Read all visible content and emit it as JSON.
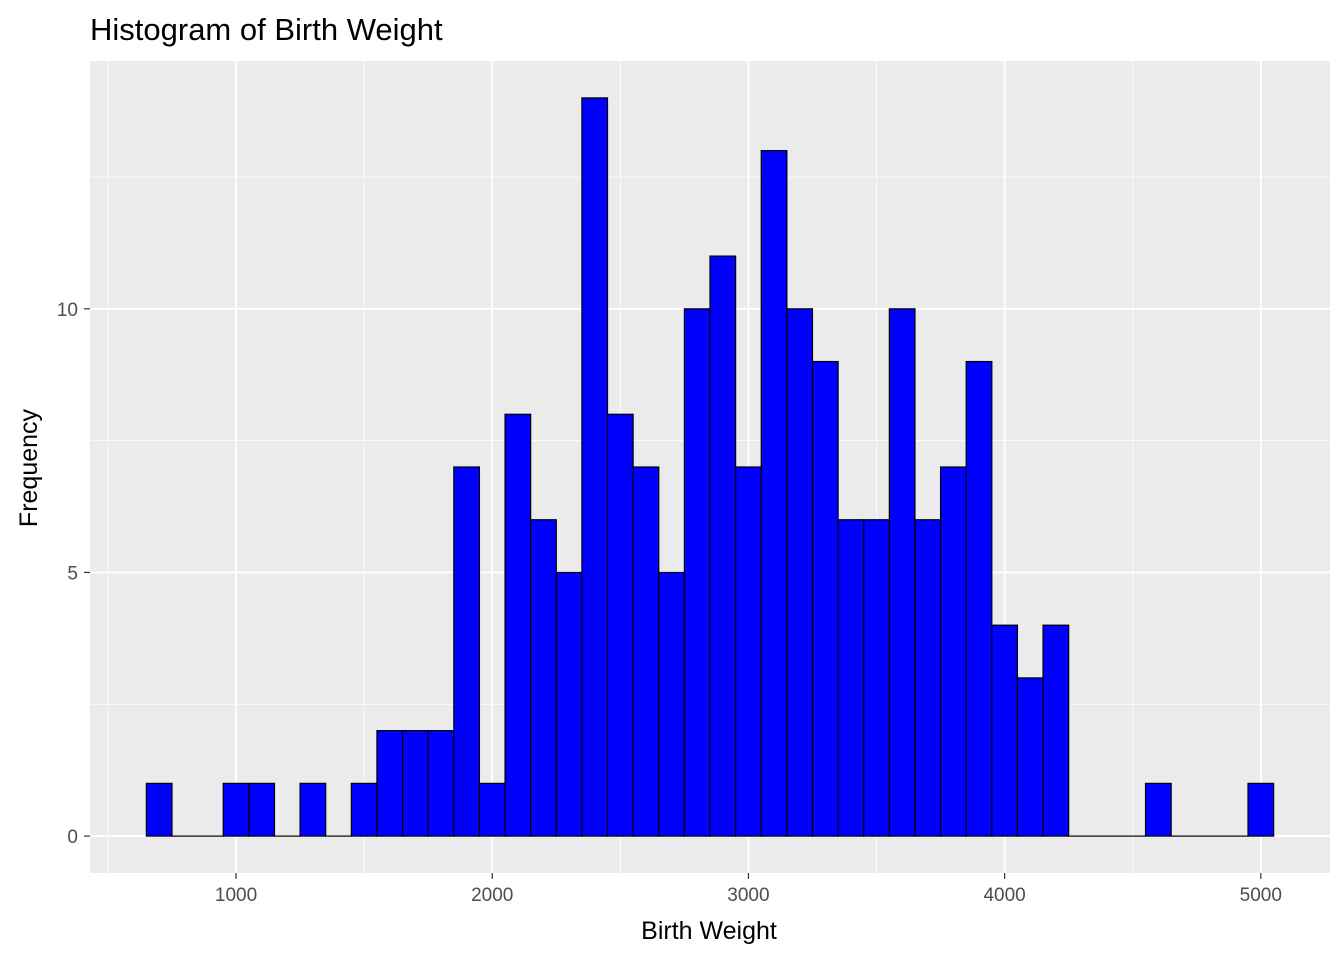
{
  "chart_data": {
    "type": "bar",
    "title": "Histogram of Birth Weight",
    "xlabel": "Birth Weight",
    "ylabel": "Frequency",
    "bin_width": 100,
    "bins": [
      {
        "x": 700,
        "count": 1
      },
      {
        "x": 800,
        "count": 0
      },
      {
        "x": 900,
        "count": 0
      },
      {
        "x": 1000,
        "count": 1
      },
      {
        "x": 1100,
        "count": 1
      },
      {
        "x": 1200,
        "count": 0
      },
      {
        "x": 1300,
        "count": 1
      },
      {
        "x": 1400,
        "count": 0
      },
      {
        "x": 1500,
        "count": 1
      },
      {
        "x": 1600,
        "count": 2
      },
      {
        "x": 1700,
        "count": 2
      },
      {
        "x": 1800,
        "count": 2
      },
      {
        "x": 1900,
        "count": 7
      },
      {
        "x": 2000,
        "count": 1
      },
      {
        "x": 2100,
        "count": 8
      },
      {
        "x": 2200,
        "count": 6
      },
      {
        "x": 2300,
        "count": 5
      },
      {
        "x": 2400,
        "count": 14
      },
      {
        "x": 2500,
        "count": 8
      },
      {
        "x": 2600,
        "count": 7
      },
      {
        "x": 2700,
        "count": 5
      },
      {
        "x": 2800,
        "count": 10
      },
      {
        "x": 2900,
        "count": 11
      },
      {
        "x": 3000,
        "count": 7
      },
      {
        "x": 3100,
        "count": 13
      },
      {
        "x": 3200,
        "count": 10
      },
      {
        "x": 3300,
        "count": 9
      },
      {
        "x": 3400,
        "count": 6
      },
      {
        "x": 3500,
        "count": 6
      },
      {
        "x": 3600,
        "count": 10
      },
      {
        "x": 3700,
        "count": 6
      },
      {
        "x": 3800,
        "count": 7
      },
      {
        "x": 3900,
        "count": 9
      },
      {
        "x": 4000,
        "count": 4
      },
      {
        "x": 4100,
        "count": 3
      },
      {
        "x": 4200,
        "count": 4
      },
      {
        "x": 4300,
        "count": 0
      },
      {
        "x": 4400,
        "count": 0
      },
      {
        "x": 4500,
        "count": 0
      },
      {
        "x": 4600,
        "count": 1
      },
      {
        "x": 4700,
        "count": 0
      },
      {
        "x": 4800,
        "count": 0
      },
      {
        "x": 4900,
        "count": 0
      },
      {
        "x": 5000,
        "count": 1
      }
    ],
    "xlim": [
      430,
      5270
    ],
    "ylim": [
      -0.7,
      14.7
    ],
    "x_ticks": [
      1000,
      2000,
      3000,
      4000,
      5000
    ],
    "y_ticks": [
      0,
      5,
      10
    ],
    "grid": true,
    "fill_color": "#0000ff",
    "stroke_color": "#000000",
    "panel_color": "#ebebeb",
    "grid_color": "#ffffff"
  }
}
